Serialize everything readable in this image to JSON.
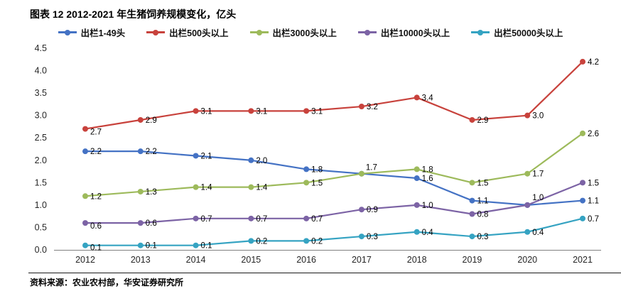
{
  "header": {
    "title": "图表 12 2012-2021 年生猪饲养规模变化，亿头"
  },
  "footer": {
    "source": "资料来源：农业农村部，华安证券研究所"
  },
  "chart_data": {
    "type": "line",
    "title": "2012-2021 年生猪饲养规模变化，亿头",
    "xlabel": "",
    "ylabel": "",
    "categories": [
      "2012",
      "2013",
      "2014",
      "2015",
      "2016",
      "2017",
      "2018",
      "2019",
      "2020",
      "2021"
    ],
    "ylim": [
      0,
      4.5
    ],
    "y_tick_step": 0.5,
    "grid": false,
    "legend_position": "top",
    "axis_color": "#808080",
    "series": [
      {
        "name": "出栏1-49头",
        "color": "#4472C4",
        "values": [
          2.2,
          2.2,
          2.1,
          2.0,
          1.8,
          1.7,
          1.6,
          1.1,
          1.0,
          1.1
        ],
        "labels": [
          "2.2",
          "2.2",
          "2.1",
          "2.0",
          "1.8",
          "1.7",
          "1.6",
          "1.1",
          "1.0",
          "1.1"
        ],
        "label_offsets": {
          "5": [
            6,
            -5
          ],
          "8": [
            7,
            -7
          ]
        }
      },
      {
        "name": "出栏500头以上",
        "color": "#C8423C",
        "values": [
          2.7,
          2.9,
          3.1,
          3.1,
          3.1,
          3.2,
          3.4,
          2.9,
          3.0,
          4.2
        ],
        "labels": [
          "2.7",
          "2.9",
          "3.1",
          "3.1",
          "3.1",
          "3.2",
          "3.4",
          "2.9",
          "3.0",
          "4.2"
        ],
        "label_offsets": {
          "0": [
            7,
            8
          ]
        }
      },
      {
        "name": "出栏3000头以上",
        "color": "#9DBA5B",
        "values": [
          1.2,
          1.3,
          1.4,
          1.4,
          1.5,
          1.7,
          1.8,
          1.5,
          1.7,
          2.6
        ],
        "labels": [
          "1.2",
          "1.3",
          "1.4",
          "1.4",
          "1.5",
          "",
          "1.8",
          "1.5",
          "1.7",
          "2.6"
        ],
        "label_offsets": {}
      },
      {
        "name": "出栏10000头以上",
        "color": "#7C63A5",
        "values": [
          0.6,
          0.6,
          0.7,
          0.7,
          0.7,
          0.9,
          1.0,
          0.8,
          1.0,
          1.5
        ],
        "labels": [
          "0.6",
          "0.6",
          "0.7",
          "0.7",
          "0.7",
          "0.9",
          "1.0",
          "0.8",
          "",
          "1.5"
        ],
        "label_offsets": {
          "0": [
            7,
            8
          ]
        }
      },
      {
        "name": "出栏50000头以上",
        "color": "#35A3C2",
        "values": [
          0.1,
          0.1,
          0.1,
          0.2,
          0.2,
          0.3,
          0.4,
          0.3,
          0.4,
          0.7
        ],
        "labels": [
          "0.1",
          "0.1",
          "0.1",
          "0.2",
          "0.2",
          "0.3",
          "0.4",
          "0.3",
          "0.4",
          "0.7"
        ],
        "label_offsets": {
          "0": [
            7,
            7
          ]
        }
      }
    ]
  }
}
